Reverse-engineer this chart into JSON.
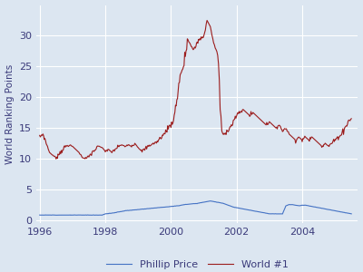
{
  "title": "",
  "ylabel": "World Ranking Points",
  "xlabel": "",
  "background_color": "#dce6f1",
  "figure_bg": "#dce6f1",
  "phillip_color": "#4472c4",
  "world1_color": "#9b1c1c",
  "legend_labels": [
    "Phillip Price",
    "World #1"
  ],
  "xlim": [
    1995.9,
    2005.7
  ],
  "ylim": [
    -0.5,
    35
  ],
  "yticks": [
    0,
    5,
    10,
    15,
    20,
    25,
    30
  ],
  "xticks": [
    1996,
    1998,
    2000,
    2002,
    2004
  ]
}
